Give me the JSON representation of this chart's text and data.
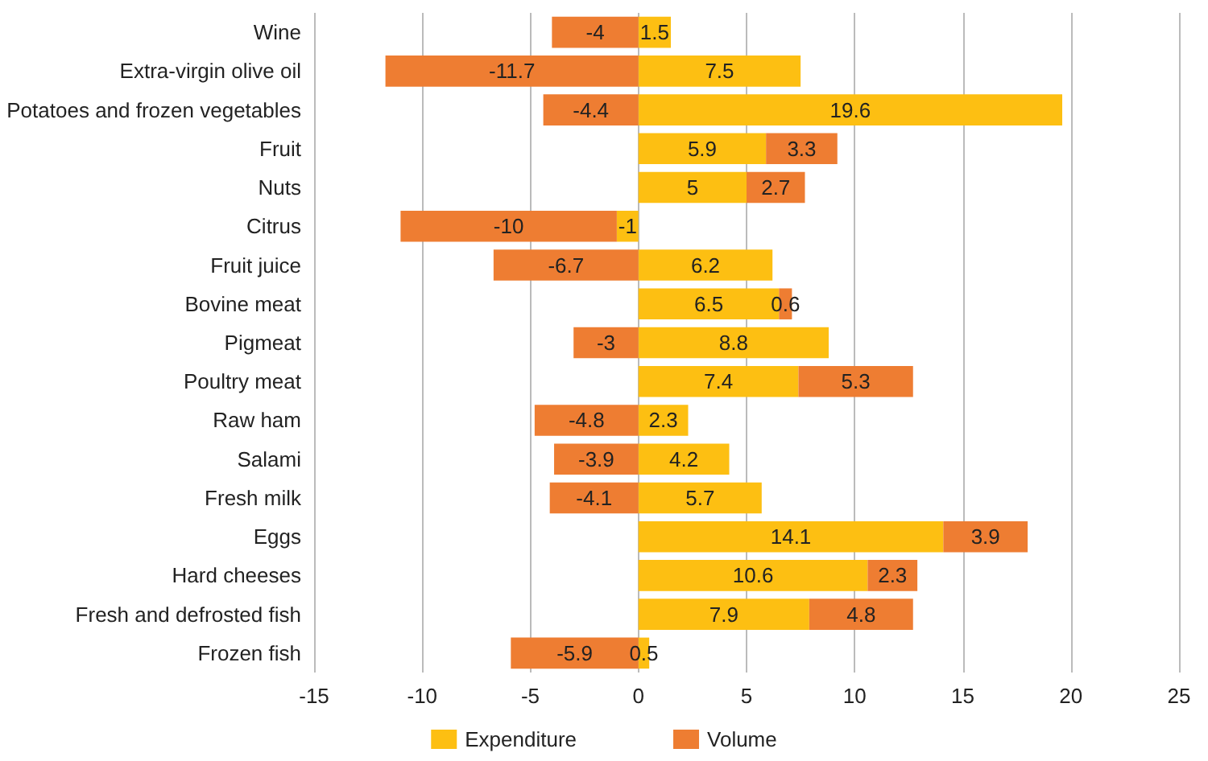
{
  "chart_data": {
    "type": "bar",
    "orientation": "horizontal",
    "stacked": true,
    "data_labels": true,
    "grid": "x",
    "legend": "bottom",
    "categories": [
      "Wine",
      "Extra-virgin olive oil",
      "Potatoes and frozen vegetables",
      "Fruit",
      "Nuts",
      "Citrus",
      "Fruit juice",
      "Bovine meat",
      "Pigmeat",
      "Poultry meat",
      "Raw ham",
      "Salami",
      "Fresh milk",
      "Eggs",
      "Hard cheeses",
      "Fresh and defrosted fish",
      "Frozen fish"
    ],
    "series": [
      {
        "name": "Expenditure",
        "color": "#fdbf12",
        "values": [
          1.5,
          7.5,
          19.6,
          5.9,
          5,
          -1,
          6.2,
          6.5,
          8.8,
          7.4,
          2.3,
          4.2,
          5.7,
          14.1,
          10.6,
          7.9,
          0.5
        ]
      },
      {
        "name": "Volume",
        "color": "#ee7d32",
        "values": [
          -4,
          -11.7,
          -4.4,
          3.3,
          2.7,
          -10,
          -6.7,
          0.6,
          -3,
          5.3,
          -4.8,
          -3.9,
          -4.1,
          3.9,
          2.3,
          4.8,
          -5.9
        ]
      }
    ],
    "xlim": [
      -15,
      25
    ],
    "xticks": [
      -15,
      -10,
      -5,
      0,
      5,
      10,
      15,
      20,
      25
    ]
  }
}
